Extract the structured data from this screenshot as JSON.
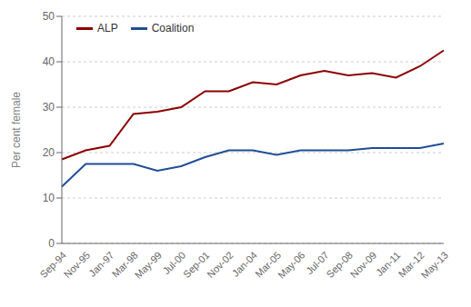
{
  "chart_data": {
    "type": "line",
    "categories": [
      "Sep-94",
      "Nov-95",
      "Jan-97",
      "Mar-98",
      "May-99",
      "Jul-00",
      "Sep-01",
      "Nov-02",
      "Jan-04",
      "Mar-05",
      "May-06",
      "Jul-07",
      "Sep-08",
      "Nov-09",
      "Jan-11",
      "Mar-12",
      "May-13"
    ],
    "series": [
      {
        "name": "ALP",
        "color": "#8B0000",
        "values": [
          18.5,
          20.5,
          21.5,
          28.5,
          29.0,
          30.0,
          33.5,
          33.5,
          35.5,
          35.0,
          37.0,
          38.0,
          37.0,
          37.5,
          36.5,
          39.0,
          42.5
        ]
      },
      {
        "name": "Coalition",
        "color": "#1F4E96",
        "values": [
          12.5,
          17.5,
          17.5,
          17.5,
          16.0,
          17.0,
          19.0,
          20.5,
          20.5,
          19.5,
          20.5,
          20.5,
          20.5,
          21.0,
          21.0,
          21.0,
          22.0
        ]
      }
    ],
    "ylabel": "Per cent female",
    "ylim": [
      0,
      50
    ],
    "yticks": [
      0,
      10,
      20,
      30,
      40,
      50
    ],
    "grid": true,
    "legend": "upper left"
  }
}
